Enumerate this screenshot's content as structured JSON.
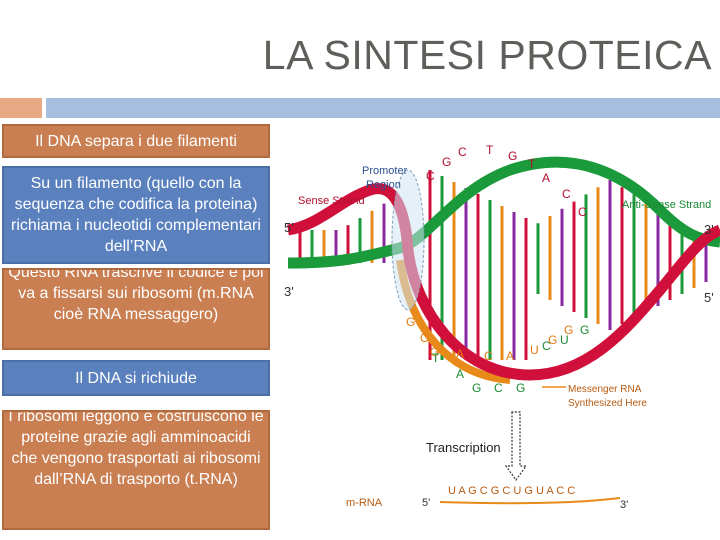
{
  "slide": {
    "title": "LA SINTESI PROTEICA",
    "steps": [
      "Il DNA separa i due filamenti",
      "Su un filamento (quello con la sequenza che codifica la proteina) richiama i nucleotidi complementari dell’RNA",
      "Questo RNA trascrive il codice e poi va a fissarsi sui ribosomi (m.RNA cioè RNA messaggero)",
      "Il DNA si richiude",
      "I ribosomi leggono e costruiscono le proteine grazie agli amminoacidi che vengono trasportati ai ribosomi dall’RNA di trasporto (t.RNA)"
    ]
  },
  "diagram": {
    "promoter_line1": "Promoter",
    "promoter_line2": "Region",
    "sense_strand": "Sense Strand",
    "antisense_strand": "Anti-Sense Strand",
    "end_5_left": "5'",
    "end_3_left": "3'",
    "end_3_right": "3'",
    "end_5_right": "5'",
    "messenger_line1": "Messenger RNA",
    "messenger_line2": "Synthesized Here",
    "transcription": "Transcription",
    "mrna_label": "m-RNA",
    "mrna_5": "5'",
    "mrna_sequence": "U A G C G C U G U A C C",
    "mrna_3": "3'",
    "sense_bases": [
      "C",
      "G",
      "C",
      "T",
      "G",
      "T",
      "A",
      "C",
      "C"
    ],
    "rna_bases": [
      "G",
      "C",
      "G",
      "A",
      "C",
      "A",
      "U",
      "G",
      "G"
    ],
    "template_bases": [
      "T",
      "A",
      "G",
      "C",
      "G",
      "C",
      "U",
      "G"
    ],
    "strand_colors": {
      "sense": "#d0103a",
      "antisense": "#1a9a3a",
      "rna": "#e88a1a"
    }
  }
}
